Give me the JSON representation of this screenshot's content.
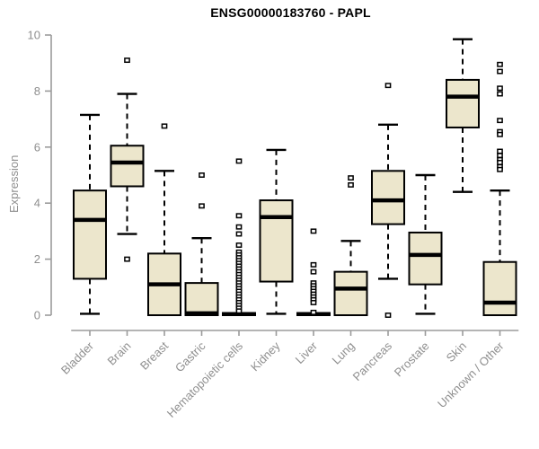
{
  "chart_data": {
    "type": "boxplot",
    "title": "ENSG00000183760 - PAPL",
    "ylabel": "Expression",
    "ylim": [
      0,
      10
    ],
    "yticks": [
      0,
      2,
      4,
      6,
      8,
      10
    ],
    "grid": false,
    "legend": "none",
    "colors": {
      "box_fill": "#ece6cc",
      "box_stroke": "#000000",
      "median": "#000000",
      "whisker": "#000000",
      "axis": "#9b9b9b",
      "tick_label": "#8f8f8f",
      "title": "#000000",
      "outlier_fill": "#ffffff",
      "outlier_stroke": "#000000"
    },
    "categories": [
      "Bladder",
      "Brain",
      "Breast",
      "Gastric",
      "Hematopoietic cells",
      "Kidney",
      "Liver",
      "Lung",
      "Pancreas",
      "Prostate",
      "Skin",
      "Unknown / Other"
    ],
    "boxes": [
      {
        "name": "Bladder",
        "whisker_low": 0.05,
        "q1": 1.3,
        "median": 3.4,
        "q3": 4.45,
        "whisker_high": 7.15,
        "outliers": []
      },
      {
        "name": "Brain",
        "whisker_low": 2.9,
        "q1": 4.6,
        "median": 5.45,
        "q3": 6.05,
        "whisker_high": 7.9,
        "outliers": [
          9.1,
          2.0
        ]
      },
      {
        "name": "Breast",
        "whisker_low": 0.0,
        "q1": 0.0,
        "median": 1.1,
        "q3": 2.2,
        "whisker_high": 5.15,
        "outliers": [
          6.75
        ]
      },
      {
        "name": "Gastric",
        "whisker_low": 0.0,
        "q1": 0.0,
        "median": 0.07,
        "q3": 1.15,
        "whisker_high": 2.75,
        "outliers": [
          5.0,
          3.9
        ]
      },
      {
        "name": "Hematopoietic cells",
        "whisker_low": 0.0,
        "q1": 0.0,
        "median": 0.04,
        "q3": 0.08,
        "whisker_high": 0.08,
        "outliers": [
          5.5,
          3.55,
          3.15,
          2.9,
          2.5,
          2.25,
          2.15,
          2.05,
          1.95,
          1.85,
          1.75,
          1.65,
          1.55,
          1.45,
          1.35,
          1.25,
          1.15,
          1.05,
          0.95,
          0.85,
          0.75,
          0.65,
          0.55,
          0.45,
          0.35,
          0.25,
          0.15
        ]
      },
      {
        "name": "Kidney",
        "whisker_low": 0.05,
        "q1": 1.2,
        "median": 3.5,
        "q3": 4.1,
        "whisker_high": 5.9,
        "outliers": []
      },
      {
        "name": "Liver",
        "whisker_low": 0.0,
        "q1": 0.0,
        "median": 0.04,
        "q3": 0.08,
        "whisker_high": 0.08,
        "outliers": [
          3.0,
          1.8,
          1.55,
          1.15,
          1.05,
          0.95,
          0.85,
          0.75,
          0.65,
          0.55,
          0.45,
          0.1
        ]
      },
      {
        "name": "Lung",
        "whisker_low": 0.0,
        "q1": 0.0,
        "median": 0.95,
        "q3": 1.55,
        "whisker_high": 2.65,
        "outliers": [
          4.9,
          4.65
        ]
      },
      {
        "name": "Pancreas",
        "whisker_low": 1.3,
        "q1": 3.25,
        "median": 4.1,
        "q3": 5.15,
        "whisker_high": 6.8,
        "outliers": [
          8.2,
          0.0
        ]
      },
      {
        "name": "Prostate",
        "whisker_low": 0.05,
        "q1": 1.1,
        "median": 2.15,
        "q3": 2.95,
        "whisker_high": 5.0,
        "outliers": []
      },
      {
        "name": "Skin",
        "whisker_low": 4.4,
        "q1": 6.7,
        "median": 7.8,
        "q3": 8.4,
        "whisker_high": 9.85,
        "outliers": []
      },
      {
        "name": "Unknown / Other",
        "whisker_low": 0.0,
        "q1": 0.0,
        "median": 0.45,
        "q3": 1.9,
        "whisker_high": 4.45,
        "outliers": [
          8.95,
          8.7,
          8.1,
          7.9,
          6.95,
          6.55,
          6.45,
          5.85,
          5.7,
          5.55,
          5.45,
          5.3,
          5.2
        ]
      }
    ]
  }
}
